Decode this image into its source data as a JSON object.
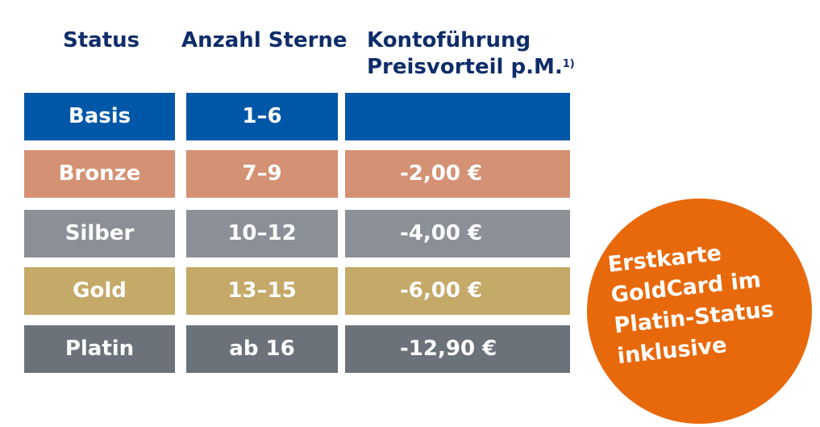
{
  "header": {
    "status": "Status",
    "stars": "Anzahl Sterne",
    "fee_line1": "Kontoführung",
    "fee_line2": "Preisvorteil p.M.",
    "fee_footnote": "1)"
  },
  "rows": [
    {
      "status": "Basis",
      "stars": "1–6",
      "discount": "",
      "color": "#0057a8"
    },
    {
      "status": "Bronze",
      "stars": "7–9",
      "discount": "-2,00 €",
      "color": "#d49173"
    },
    {
      "status": "Silber",
      "stars": "10–12",
      "discount": "-4,00 €",
      "color": "#8b9097"
    },
    {
      "status": "Gold",
      "stars": "13–15",
      "discount": "-6,00 €",
      "color": "#c4a968"
    },
    {
      "status": "Platin",
      "stars": "ab 16",
      "discount": "-12,90 €",
      "color": "#6c7279"
    }
  ],
  "badge": {
    "lines": [
      "Erstkarte",
      "GoldCard im",
      "Platin-Status",
      "inklusive"
    ],
    "color": "#e8690c"
  }
}
